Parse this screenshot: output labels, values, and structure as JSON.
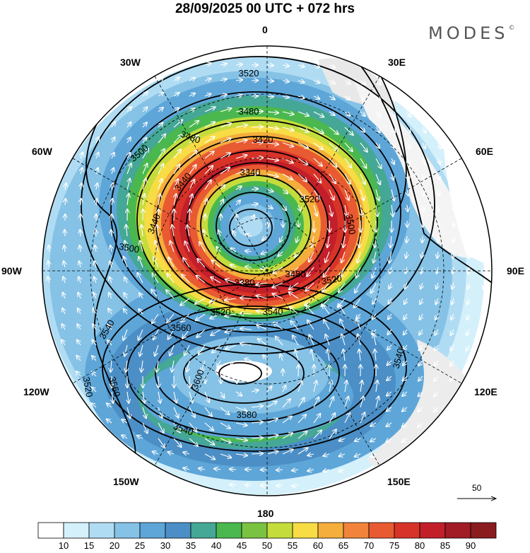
{
  "title": "28/09/2025  00 UTC  + 072 hrs",
  "brand": "MODES",
  "brand_mark": "©",
  "longitude_labels": {
    "deg0": "0",
    "deg30e": "30E",
    "deg60e": "60E",
    "deg90e": "90E",
    "deg120e": "120E",
    "deg150e": "150E",
    "deg180": "180",
    "deg150w": "150W",
    "deg120w": "120W",
    "deg90w": "90W",
    "deg60w": "60W",
    "deg30w": "30W"
  },
  "contour_labels": [
    "3520",
    "3480",
    "3480",
    "3420",
    "3500",
    "3440",
    "3340",
    "3440",
    "3500",
    "3520",
    "3500",
    "3380",
    "3480",
    "3520",
    "3520",
    "3540",
    "3540",
    "3560",
    "3540",
    "3600",
    "3560",
    "3580",
    "3520",
    "3540"
  ],
  "wind_reference": {
    "value": "50"
  },
  "colorbar": {
    "labels": [
      "10",
      "15",
      "20",
      "25",
      "30",
      "35",
      "40",
      "45",
      "50",
      "55",
      "60",
      "65",
      "70",
      "75",
      "80",
      "85",
      "90"
    ],
    "colors": [
      "#ffffff",
      "#d4f0fb",
      "#b0dcf3",
      "#85c2e6",
      "#5ea6d8",
      "#4b8fc6",
      "#45a795",
      "#4ab84f",
      "#7ac342",
      "#c5dc3d",
      "#f7dc45",
      "#f5ad3c",
      "#f1843a",
      "#e85a32",
      "#d83329",
      "#c21f2a",
      "#a11c25",
      "#8a1c20"
    ]
  }
}
